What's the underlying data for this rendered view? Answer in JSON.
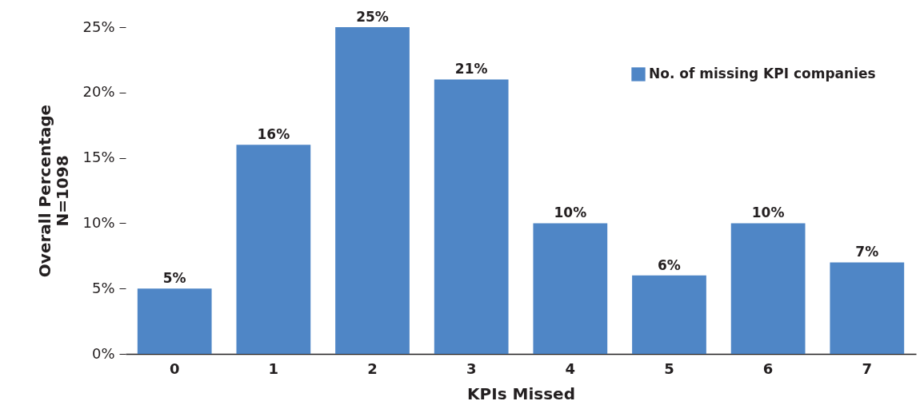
{
  "chart_data": {
    "type": "bar",
    "xlabel": "KPIs Missed",
    "ylabel": "Overall Percentage\nN=1098",
    "categories": [
      "0",
      "1",
      "2",
      "3",
      "4",
      "5",
      "6",
      "7"
    ],
    "series": [
      {
        "name": "No. of missing KPI companies",
        "color": "#4f86c6",
        "values": [
          5,
          16,
          25,
          21,
          10,
          6,
          10,
          7
        ]
      }
    ],
    "value_labels": [
      "5%",
      "16%",
      "25%",
      "21%",
      "10%",
      "6%",
      "10%",
      "7%"
    ],
    "ylim": [
      0,
      25
    ],
    "yticks": [
      {
        "value": 0,
        "label": "0%"
      },
      {
        "value": 5,
        "label": "5%"
      },
      {
        "value": 10,
        "label": "10%"
      },
      {
        "value": 15,
        "label": "15%"
      },
      {
        "value": 20,
        "label": "20%"
      },
      {
        "value": 25,
        "label": "25%"
      }
    ],
    "grid": false,
    "legend": "top right"
  }
}
